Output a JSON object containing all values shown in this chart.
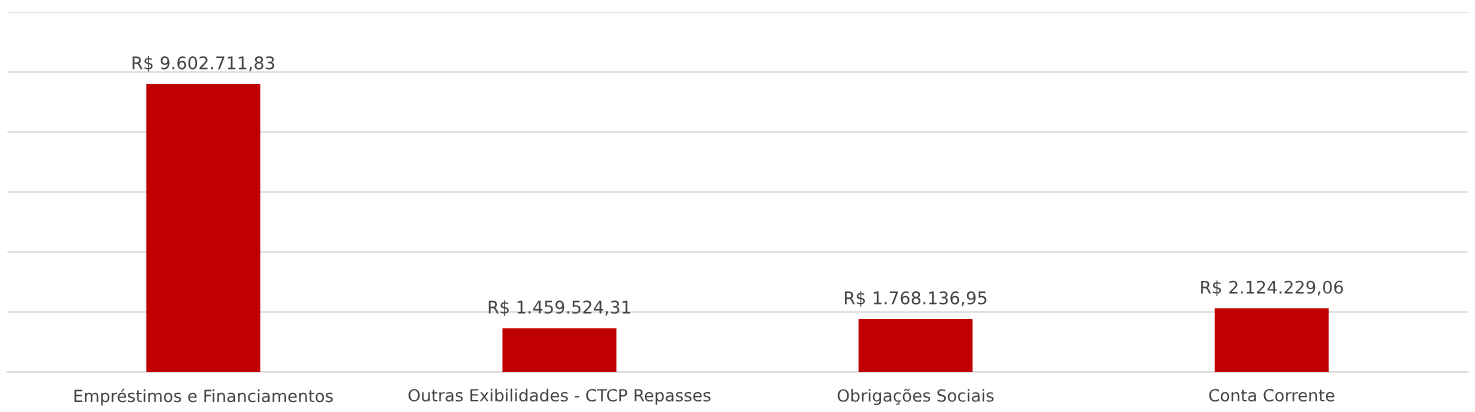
{
  "chart_data": {
    "type": "bar",
    "categories": [
      "Empréstimos e Financiamentos",
      "Outras Exibilidades - CTCP Repasses",
      "Obrigações Sociais",
      "Conta Corrente"
    ],
    "values": [
      9602711.83,
      1459524.31,
      1768136.95,
      2124229.06
    ],
    "value_labels": [
      "R$ 9.602.711,83",
      "R$ 1.459.524,31",
      "R$ 1.768.136,95",
      "R$ 2.124.229,06"
    ],
    "color": "#c00000",
    "ylim": [
      0,
      12000000
    ],
    "yticks": [
      {
        "value": 0,
        "label": null
      },
      {
        "value": 2000000,
        "label": null
      },
      {
        "value": 4000000,
        "label": null
      },
      {
        "value": 6000000,
        "label": null
      },
      {
        "value": 8000000,
        "label": null
      },
      {
        "value": 10000000,
        "label": null
      },
      {
        "value": 12000000,
        "label": null
      }
    ],
    "grid": "y",
    "tick_labels": "x",
    "legend": false
  }
}
